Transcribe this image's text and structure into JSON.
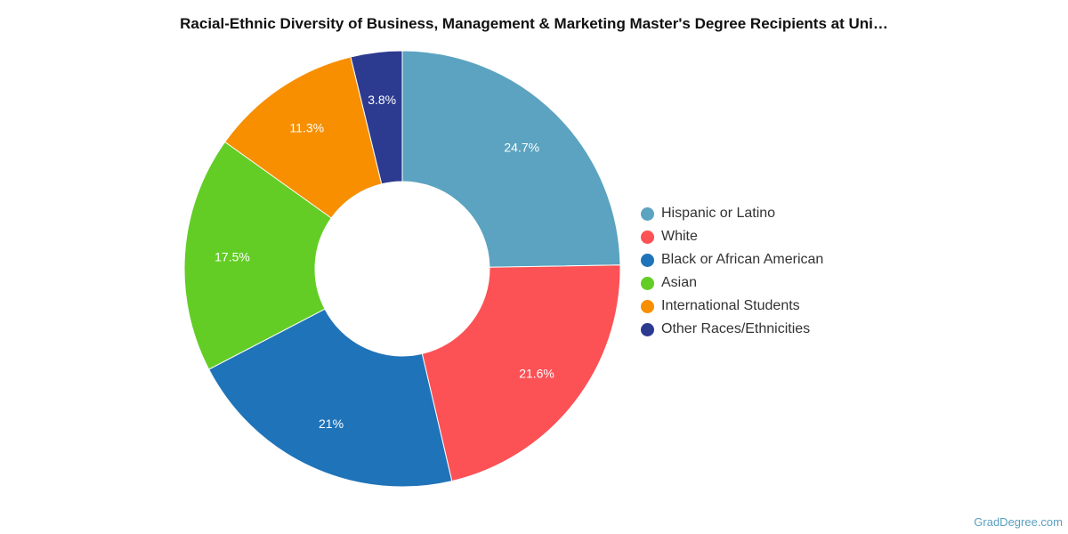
{
  "chart_data": {
    "type": "pie",
    "title": "Racial-Ethnic Diversity of Business, Management & Marketing Master's Degree Recipients at Uni…",
    "donut": true,
    "legend_position": "right",
    "series": [
      {
        "name": "Hispanic or Latino",
        "value": 24.7,
        "label": "24.7%",
        "color": "#5ba3c0"
      },
      {
        "name": "White",
        "value": 21.6,
        "label": "21.6%",
        "color": "#fc5155"
      },
      {
        "name": "Black or African American",
        "value": 21.0,
        "label": "21%",
        "color": "#1f73b9"
      },
      {
        "name": "Asian",
        "value": 17.5,
        "label": "17.5%",
        "color": "#63cd25"
      },
      {
        "name": "International Students",
        "value": 11.3,
        "label": "11.3%",
        "color": "#f78f00"
      },
      {
        "name": "Other Races/Ethnicities",
        "value": 3.8,
        "label": "3.8%",
        "color": "#2c3a90"
      }
    ]
  },
  "footer": {
    "source": "GradDegree.com"
  }
}
